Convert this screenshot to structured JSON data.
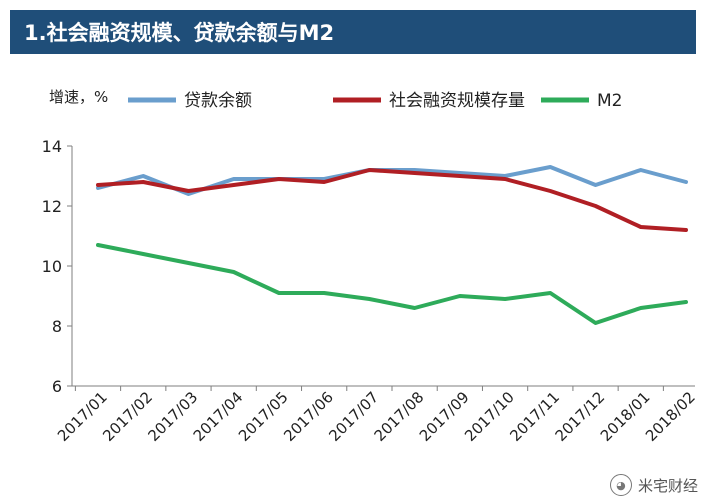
{
  "header": {
    "title": "1.社会融资规模、贷款余额与M2"
  },
  "watermark": {
    "text": "米宅财经",
    "icon": "wechat-icon"
  },
  "chart_data": {
    "type": "line",
    "title": "1.社会融资规模、贷款余额与M2",
    "ylabel": "增速，%",
    "xlabel": "",
    "ylim": [
      6,
      14
    ],
    "yticks": [
      6,
      8,
      10,
      12,
      14
    ],
    "grid": false,
    "legend_position": "top",
    "categories": [
      "2017/01",
      "2017/02",
      "2017/03",
      "2017/04",
      "2017/05",
      "2017/06",
      "2017/07",
      "2017/08",
      "2017/09",
      "2017/10",
      "2017/11",
      "2017/12",
      "2018/01",
      "2018/02"
    ],
    "series": [
      {
        "name": "贷款余额",
        "color": "#6a9ecd",
        "values": [
          12.6,
          13.0,
          12.4,
          12.9,
          12.9,
          12.9,
          13.2,
          13.2,
          13.1,
          13.0,
          13.3,
          12.7,
          13.2,
          12.8
        ]
      },
      {
        "name": "社会融资规模存量",
        "color": "#b01f24",
        "values": [
          12.7,
          12.8,
          12.5,
          12.7,
          12.9,
          12.8,
          13.2,
          13.1,
          13.0,
          12.9,
          12.5,
          12.0,
          11.3,
          11.2
        ]
      },
      {
        "name": "M2",
        "color": "#2eab5a",
        "values": [
          10.7,
          10.4,
          10.1,
          9.8,
          9.1,
          9.1,
          8.9,
          8.6,
          9.0,
          8.9,
          9.1,
          8.1,
          8.6,
          8.8
        ]
      }
    ]
  }
}
